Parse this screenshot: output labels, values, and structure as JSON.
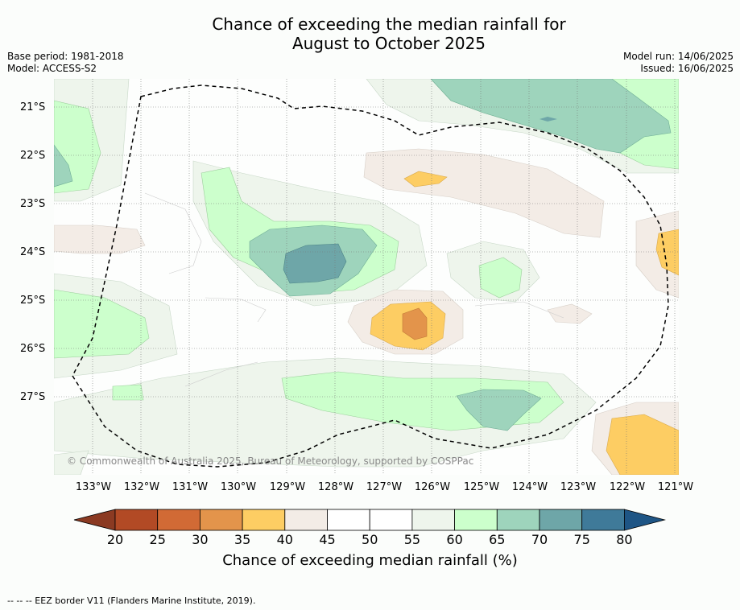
{
  "title_line1": "Chance of exceeding the median rainfall for",
  "title_line2": "August to October 2025",
  "base_period": "Base period: 1981-2018",
  "model": "Model: ACCESS-S2",
  "model_run": "Model run: 14/06/2025",
  "issued": "Issued: 16/06/2025",
  "lat_labels": [
    "21°S",
    "22°S",
    "23°S",
    "24°S",
    "25°S",
    "26°S",
    "27°S"
  ],
  "lon_labels": [
    "133°W",
    "132°W",
    "131°W",
    "130°W",
    "129°W",
    "128°W",
    "127°W",
    "126°W",
    "125°W",
    "124°W",
    "123°W",
    "122°W",
    "121°W"
  ],
  "copyright": "© Commonwealth of Australia 2025, Bureau of Meteorology, supported by COSPPac",
  "colorbar": {
    "ticks": [
      "20",
      "25",
      "30",
      "35",
      "40",
      "45",
      "50",
      "55",
      "60",
      "65",
      "70",
      "75",
      "80"
    ],
    "label": "Chance of exceeding median rainfall (%)",
    "colors": [
      "#8b3a22",
      "#b24a25",
      "#d16a35",
      "#e3944b",
      "#fdcd63",
      "#f3ece6",
      "#ffffff",
      "#ffffff",
      "#eef5ec",
      "#ccffcc",
      "#9ed4bc",
      "#6ea6a8",
      "#3f7a99",
      "#1e5585"
    ]
  },
  "footnote": "--  --  -- EEZ border V11 (Flanders Marine Institute, 2019)."
}
